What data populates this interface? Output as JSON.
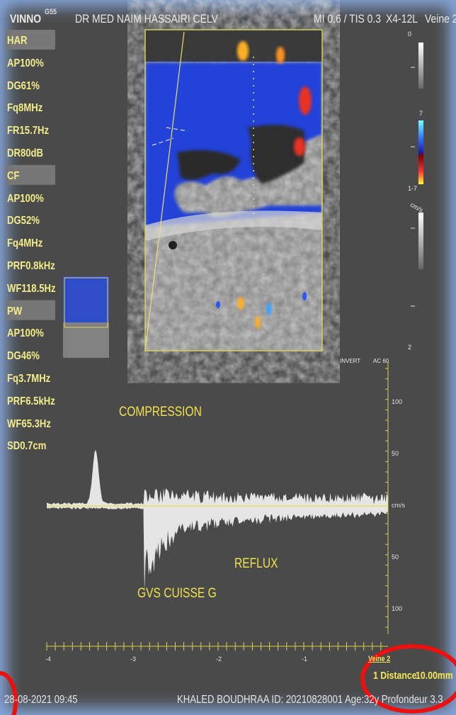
{
  "header": {
    "brand": "VINNO",
    "model": "G55",
    "doctor": "DR MED NAIM HASSAIRI CELV",
    "indices": "MI 0.6 / TIS 0.3",
    "probe": "X4-12L",
    "preset": "Veine 2"
  },
  "parameters": [
    {
      "title": "HAR",
      "items": [
        "AP100%",
        "DG61%",
        "Fq8MHz",
        "FR15.7Hz",
        "DR80dB"
      ]
    },
    {
      "title": "CF",
      "items": [
        "AP100%",
        "DG52%",
        "Fq4MHz",
        "PRF0.8kHz",
        "WF118.5Hz"
      ]
    },
    {
      "title": "PW",
      "items": [
        "AP100%",
        "DG46%",
        "Fq3.7MHz",
        "PRF6.5kHz",
        "WF65.3Hz",
        "SD0.7cm"
      ]
    }
  ],
  "color_scale": {
    "top": "0",
    "velocity": "7",
    "range": "1-7",
    "unit": "cm/s",
    "depth": "2"
  },
  "spectral": {
    "invert": "INVERT",
    "ac": "AC 60",
    "scale": [
      "100",
      "50",
      "cm/s",
      "50",
      "100"
    ],
    "time_ticks": [
      "-4",
      "-3",
      "-2",
      "-1"
    ]
  },
  "annotations": {
    "compression": "COMPRESSION",
    "reflux": "REFLUX",
    "vessel": "GVS CUISSE G"
  },
  "measurement": {
    "label": "Veine 2",
    "result": "1 Distance",
    "value": "10.00mm"
  },
  "footer": {
    "datetime": "28-08-2021 09:45",
    "patient": "KHALED  BOUDHRAA ID: 20210828001 Age:32y  Profondeur 3.3"
  }
}
